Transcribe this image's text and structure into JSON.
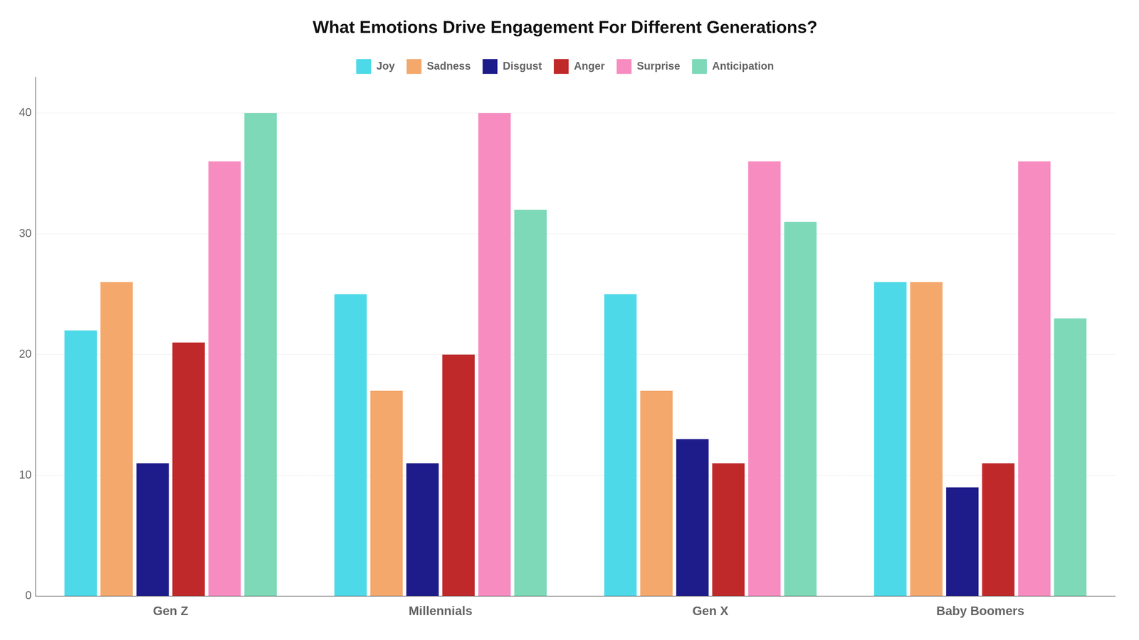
{
  "chart_data": {
    "type": "bar",
    "title": "What Emotions Drive Engagement For Different Generations?",
    "categories": [
      "Gen Z",
      "Millennials",
      "Gen X",
      "Baby Boomers"
    ],
    "series": [
      {
        "name": "Joy",
        "color": "#4DD9E8",
        "values": [
          22,
          25,
          25,
          26
        ]
      },
      {
        "name": "Sadness",
        "color": "#F4A86C",
        "values": [
          26,
          17,
          17,
          26
        ]
      },
      {
        "name": "Disgust",
        "color": "#1E1B8B",
        "values": [
          11,
          11,
          13,
          9
        ]
      },
      {
        "name": "Anger",
        "color": "#C0292A",
        "values": [
          21,
          20,
          11,
          11
        ]
      },
      {
        "name": "Surprise",
        "color": "#F78CC0",
        "values": [
          36,
          40,
          36,
          36
        ]
      },
      {
        "name": "Anticipation",
        "color": "#7DD9B8",
        "values": [
          40,
          32,
          31,
          23
        ]
      }
    ],
    "ylim": [
      0,
      43
    ],
    "yticks": [
      0,
      10,
      20,
      30,
      40
    ],
    "grid": true,
    "legend": "top"
  }
}
